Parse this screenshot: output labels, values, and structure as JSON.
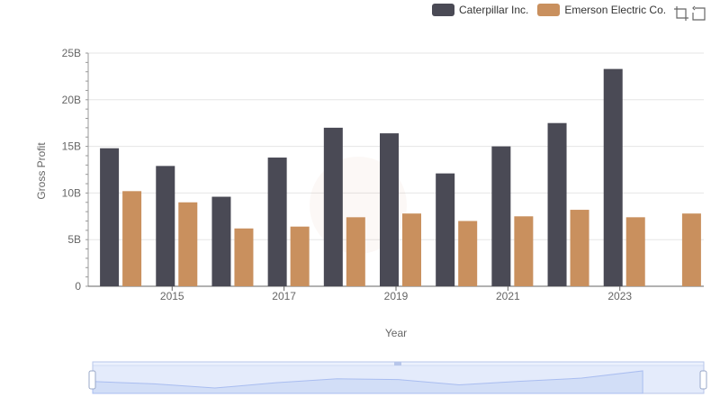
{
  "legend": {
    "items": [
      {
        "label": "Caterpillar Inc.",
        "color": "#4a4a55"
      },
      {
        "label": "Emerson Electric Co.",
        "color": "#c9905e"
      }
    ]
  },
  "toolbox": {
    "icons": [
      "zoom-icon",
      "zoom-reset-icon"
    ]
  },
  "chart_data": {
    "type": "bar",
    "xlabel": "Year",
    "ylabel": "Gross Profit",
    "ylim": [
      0,
      25000000000
    ],
    "yticks": [
      "0",
      "5B",
      "10B",
      "15B",
      "20B",
      "25B"
    ],
    "ytick_values": [
      0,
      5000000000,
      10000000000,
      15000000000,
      20000000000,
      25000000000
    ],
    "categories": [
      "2014",
      "2015",
      "2016",
      "2017",
      "2018",
      "2019",
      "2020",
      "2021",
      "2022",
      "2023",
      "2024"
    ],
    "xtick_labels_shown": [
      "2015",
      "2017",
      "2019",
      "2021",
      "2023"
    ],
    "grid": true,
    "legend_position": "top-right",
    "series": [
      {
        "name": "Caterpillar Inc.",
        "color": "#4a4a55",
        "values": [
          14800000000,
          12900000000,
          9600000000,
          13800000000,
          17000000000,
          16400000000,
          12100000000,
          15000000000,
          17500000000,
          23300000000,
          null
        ]
      },
      {
        "name": "Emerson Electric Co.",
        "color": "#c9905e",
        "values": [
          10200000000,
          9000000000,
          6200000000,
          6400000000,
          7400000000,
          7800000000,
          7000000000,
          7500000000,
          8200000000,
          7400000000,
          7800000000
        ]
      }
    ],
    "datazoom": {
      "start_percent": 0,
      "end_percent": 100
    }
  }
}
